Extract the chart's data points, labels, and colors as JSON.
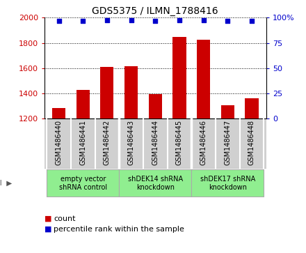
{
  "title": "GDS5375 / ILMN_1788416",
  "samples": [
    "GSM1486440",
    "GSM1486441",
    "GSM1486442",
    "GSM1486443",
    "GSM1486444",
    "GSM1486445",
    "GSM1486446",
    "GSM1486447",
    "GSM1486448"
  ],
  "counts": [
    1285,
    1430,
    1610,
    1615,
    1395,
    1845,
    1825,
    1305,
    1360
  ],
  "percentile_ranks": [
    97,
    97,
    97.5,
    97.5,
    97,
    97.5,
    97.5,
    97,
    97
  ],
  "groups": [
    {
      "label": "empty vector\nshRNA control",
      "start": 0,
      "end": 3
    },
    {
      "label": "shDEK14 shRNA\nknockdown",
      "start": 3,
      "end": 6
    },
    {
      "label": "shDEK17 shRNA\nknockdown",
      "start": 6,
      "end": 9
    }
  ],
  "ylim_left": [
    1200,
    2000
  ],
  "ylim_right": [
    0,
    100
  ],
  "yticks_left": [
    1200,
    1400,
    1600,
    1800,
    2000
  ],
  "yticks_right": [
    0,
    25,
    50,
    75,
    100
  ],
  "ytick_labels_right": [
    "0",
    "25",
    "50",
    "75",
    "100%"
  ],
  "bar_color": "#cc0000",
  "dot_color": "#0000cc",
  "grid_color": "#000000",
  "bg_color": "#d0d0d0",
  "group_color": "#90ee90",
  "dot_size": 20,
  "bar_width": 0.55,
  "legend_count_color": "#cc0000",
  "legend_rank_color": "#0000cc"
}
